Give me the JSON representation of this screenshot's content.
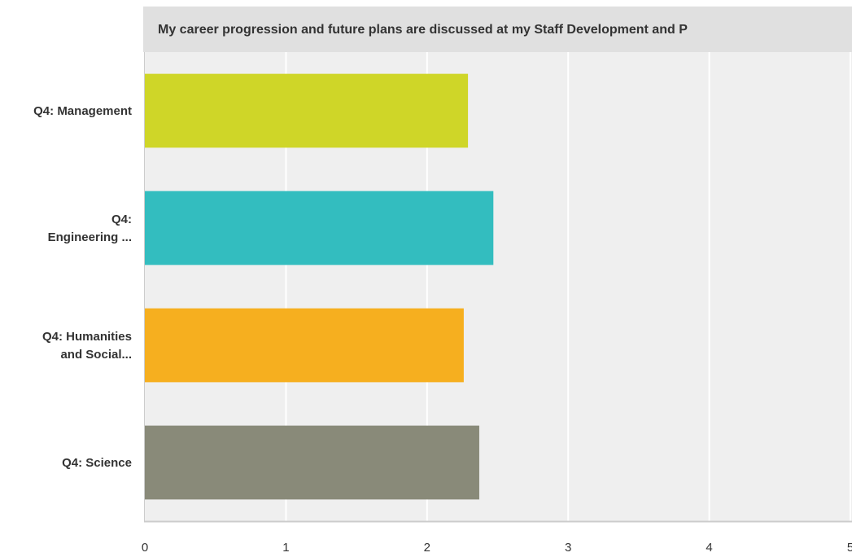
{
  "chart_data": {
    "type": "bar",
    "orientation": "horizontal",
    "title": "My career progression and future plans are discussed at my Staff Development and P",
    "categories": [
      [
        "Q4: Management"
      ],
      [
        "Q4:",
        "Engineering ..."
      ],
      [
        "Q4: Humanities",
        "and Social..."
      ],
      [
        "Q4: Science"
      ]
    ],
    "values": [
      2.29,
      2.47,
      2.26,
      2.37
    ],
    "colors": [
      "#cfd628",
      "#33bdbf",
      "#f6af1f",
      "#898a79"
    ],
    "xlim": [
      0,
      5
    ],
    "xticks": [
      "0",
      "1",
      "2",
      "3",
      "4",
      "5"
    ],
    "grid": true,
    "colors_meta": {
      "plot_bg": "#efefef",
      "title_bg": "#e0e0e0",
      "gridline": "#ffffff",
      "axis": "#cccccc"
    }
  }
}
